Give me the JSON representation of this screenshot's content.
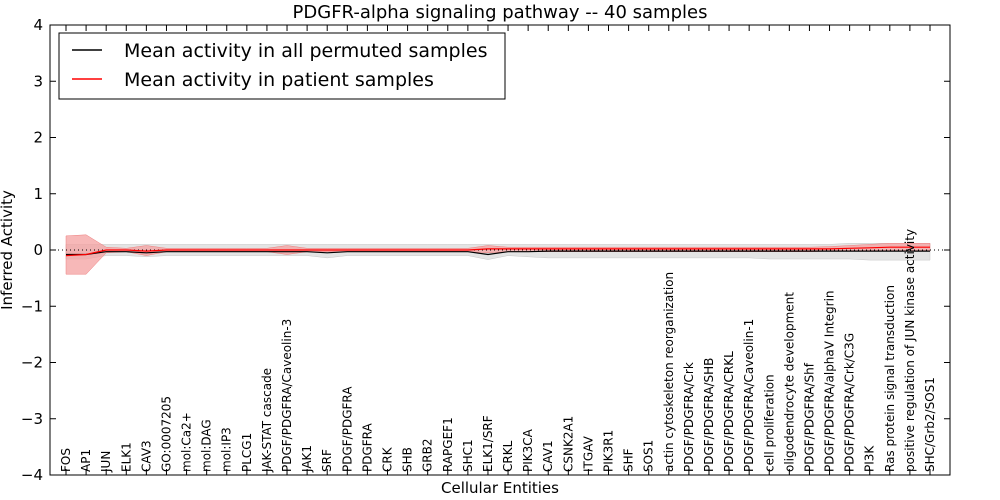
{
  "chart_data": {
    "type": "line",
    "title": "PDGFR-alpha signaling pathway -- 40 samples",
    "xlabel": "Cellular Entities",
    "ylabel": "Inferred Activity",
    "ylim": [
      -4,
      4
    ],
    "yticks": [
      -4,
      -3,
      -2,
      -1,
      0,
      1,
      2,
      3,
      4
    ],
    "ytick_labels": [
      "−4",
      "−3",
      "−2",
      "−1",
      "0",
      "1",
      "2",
      "3",
      "4"
    ],
    "grid": false,
    "legend_position": "top-left",
    "categories": [
      "FOS",
      "AP1",
      "JUN",
      "ELK1",
      "CAV3",
      "GO:0007205",
      "mol:Ca2+",
      "mol:DAG",
      "mol:IP3",
      "PLCG1",
      "JAK-STAT cascade",
      "PDGF/PDGFRA/Caveolin-3",
      "JAK1",
      "SRF",
      "PDGF/PDGFRA",
      "PDGFRA",
      "CRK",
      "SHB",
      "GRB2",
      "RAPGEF1",
      "SHC1",
      "ELK1/SRF",
      "CRKL",
      "PIK3CA",
      "CAV1",
      "CSNK2A1",
      "ITGAV",
      "PIK3R1",
      "SHF",
      "SOS1",
      "actin cytoskeleton reorganization",
      "PDGF/PDGFRA/Crk",
      "PDGF/PDGFRA/SHB",
      "PDGF/PDGFRA/CRKL",
      "PDGF/PDGFRA/Caveolin-1",
      "cell proliferation",
      "oligodendrocyte development",
      "PDGF/PDGFRA/Shf",
      "PDGF/PDGFRA/alphaV Integrin",
      "PDGF/PDGFRA/Crk/C3G",
      "PI3K",
      "Ras protein signal transduction",
      "positive regulation of JUN kinase activity",
      "SHC/Grb2/SOS1"
    ],
    "series": [
      {
        "name": "Mean activity in all permuted samples",
        "color": "#000000",
        "values": [
          -0.08,
          -0.08,
          -0.03,
          -0.03,
          -0.05,
          -0.03,
          -0.03,
          -0.03,
          -0.03,
          -0.03,
          -0.03,
          -0.03,
          -0.03,
          -0.05,
          -0.03,
          -0.03,
          -0.03,
          -0.03,
          -0.03,
          -0.03,
          -0.03,
          -0.08,
          -0.03,
          -0.03,
          -0.02,
          -0.02,
          -0.02,
          -0.02,
          -0.02,
          -0.02,
          -0.02,
          -0.02,
          -0.02,
          -0.02,
          -0.02,
          -0.02,
          -0.02,
          -0.02,
          -0.02,
          -0.02,
          -0.02,
          -0.02,
          -0.02,
          -0.02
        ],
        "band_lower": [
          -0.16,
          -0.16,
          -0.1,
          -0.1,
          -0.12,
          -0.1,
          -0.1,
          -0.1,
          -0.1,
          -0.1,
          -0.1,
          -0.1,
          -0.1,
          -0.14,
          -0.1,
          -0.1,
          -0.1,
          -0.1,
          -0.1,
          -0.1,
          -0.1,
          -0.17,
          -0.1,
          -0.12,
          -0.14,
          -0.14,
          -0.14,
          -0.14,
          -0.14,
          -0.14,
          -0.14,
          -0.14,
          -0.14,
          -0.14,
          -0.14,
          -0.16,
          -0.16,
          -0.16,
          -0.16,
          -0.16,
          -0.18,
          -0.18,
          -0.18,
          -0.18
        ],
        "band_upper": [
          0.1,
          0.1,
          0.1,
          0.1,
          0.1,
          0.1,
          0.1,
          0.1,
          0.1,
          0.1,
          0.1,
          0.1,
          0.1,
          0.1,
          0.1,
          0.1,
          0.1,
          0.1,
          0.1,
          0.1,
          0.1,
          0.1,
          0.1,
          0.1,
          0.1,
          0.1,
          0.1,
          0.1,
          0.1,
          0.1,
          0.1,
          0.1,
          0.1,
          0.1,
          0.1,
          0.1,
          0.1,
          0.1,
          0.1,
          0.12,
          0.12,
          0.12,
          0.12,
          0.12
        ]
      },
      {
        "name": "Mean activity in patient samples",
        "color": "#ff0000",
        "band_color": "#f4a0a0",
        "values": [
          -0.1,
          -0.08,
          0.0,
          0.0,
          -0.02,
          0.0,
          0.0,
          0.0,
          0.0,
          0.0,
          0.0,
          0.0,
          0.0,
          0.0,
          0.0,
          0.0,
          0.0,
          0.0,
          0.0,
          0.0,
          0.0,
          0.02,
          0.02,
          0.02,
          0.02,
          0.02,
          0.02,
          0.02,
          0.02,
          0.02,
          0.02,
          0.02,
          0.02,
          0.02,
          0.02,
          0.02,
          0.02,
          0.02,
          0.02,
          0.03,
          0.04,
          0.05,
          0.05,
          0.05
        ],
        "band_lower": [
          -0.43,
          -0.43,
          -0.05,
          -0.03,
          -0.1,
          -0.03,
          -0.03,
          -0.03,
          -0.03,
          -0.03,
          -0.03,
          -0.08,
          -0.03,
          -0.03,
          -0.03,
          -0.03,
          -0.03,
          -0.03,
          -0.03,
          -0.03,
          -0.03,
          -0.05,
          -0.03,
          -0.03,
          -0.03,
          -0.03,
          -0.03,
          -0.03,
          -0.03,
          -0.03,
          -0.03,
          -0.03,
          -0.03,
          -0.03,
          -0.03,
          -0.03,
          -0.03,
          -0.03,
          -0.02,
          -0.02,
          -0.02,
          -0.02,
          -0.02,
          -0.02
        ],
        "band_upper": [
          0.25,
          0.27,
          0.05,
          0.03,
          0.08,
          0.03,
          0.03,
          0.03,
          0.03,
          0.03,
          0.03,
          0.08,
          0.03,
          0.03,
          0.03,
          0.03,
          0.03,
          0.03,
          0.03,
          0.03,
          0.03,
          0.08,
          0.05,
          0.05,
          0.05,
          0.05,
          0.05,
          0.05,
          0.05,
          0.05,
          0.05,
          0.05,
          0.05,
          0.05,
          0.05,
          0.05,
          0.05,
          0.05,
          0.06,
          0.08,
          0.1,
          0.12,
          0.12,
          0.12
        ]
      }
    ],
    "reference_line": 0
  }
}
